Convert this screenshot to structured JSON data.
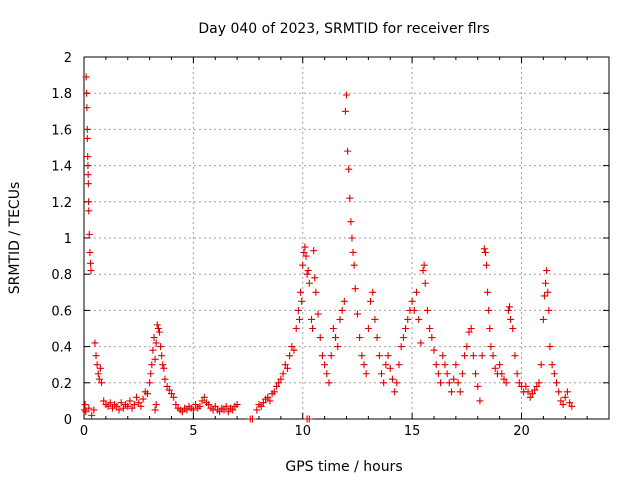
{
  "chart_data": {
    "type": "scatter",
    "title": "Day 040 of 2023, SRMTID for receiver flrs",
    "xlabel": "GPS time / hours",
    "ylabel": "SRMTID / TECUs",
    "xlim": [
      0,
      24
    ],
    "ylim": [
      0,
      2
    ],
    "x_ticks": [
      0,
      5,
      10,
      15,
      20
    ],
    "x_tick_labels": [
      "0",
      "5",
      "10",
      "15",
      "20"
    ],
    "y_ticks": [
      0,
      0.2,
      0.4,
      0.6,
      0.8,
      1,
      1.2,
      1.4,
      1.6,
      1.8,
      2
    ],
    "y_tick_labels": [
      "0",
      "0.2",
      "0.4",
      "0.6",
      "0.8",
      "1",
      "1.2",
      "1.4",
      "1.6",
      "1.8",
      "2"
    ],
    "grid": true,
    "marker": "+",
    "colors": {
      "marker": "#e00000",
      "grid": "#a0a0a0",
      "axis": "#000000"
    },
    "series": [
      {
        "name": "SRMTID",
        "points": [
          [
            0.02,
            0.05
          ],
          [
            0.05,
            0.08
          ],
          [
            0.08,
            0.04
          ],
          [
            0.1,
            1.89
          ],
          [
            0.12,
            1.8
          ],
          [
            0.13,
            1.72
          ],
          [
            0.15,
            1.6
          ],
          [
            0.15,
            1.55
          ],
          [
            0.17,
            1.45
          ],
          [
            0.18,
            1.4
          ],
          [
            0.19,
            1.35
          ],
          [
            0.2,
            1.3
          ],
          [
            0.21,
            1.2
          ],
          [
            0.22,
            1.15
          ],
          [
            0.24,
            1.02
          ],
          [
            0.27,
            0.92
          ],
          [
            0.3,
            0.86
          ],
          [
            0.32,
            0.82
          ],
          [
            0.22,
            0.06
          ],
          [
            0.35,
            0.02
          ],
          [
            0.45,
            0.05
          ],
          [
            0.5,
            0.42
          ],
          [
            0.55,
            0.35
          ],
          [
            0.6,
            0.3
          ],
          [
            0.65,
            0.25
          ],
          [
            0.7,
            0.22
          ],
          [
            0.75,
            0.28
          ],
          [
            0.8,
            0.2
          ],
          [
            0.9,
            0.1
          ],
          [
            1.0,
            0.08
          ],
          [
            1.1,
            0.07
          ],
          [
            1.2,
            0.09
          ],
          [
            1.3,
            0.06
          ],
          [
            1.4,
            0.08
          ],
          [
            1.5,
            0.07
          ],
          [
            1.6,
            0.05
          ],
          [
            1.7,
            0.09
          ],
          [
            1.8,
            0.06
          ],
          [
            1.9,
            0.08
          ],
          [
            2.0,
            0.07
          ],
          [
            2.1,
            0.1
          ],
          [
            2.2,
            0.06
          ],
          [
            2.3,
            0.08
          ],
          [
            2.4,
            0.12
          ],
          [
            2.5,
            0.09
          ],
          [
            2.6,
            0.07
          ],
          [
            2.7,
            0.11
          ],
          [
            2.8,
            0.15
          ],
          [
            2.9,
            0.14
          ],
          [
            3.0,
            0.2
          ],
          [
            3.05,
            0.25
          ],
          [
            3.1,
            0.3
          ],
          [
            3.15,
            0.38
          ],
          [
            3.2,
            0.45
          ],
          [
            3.25,
            0.33
          ],
          [
            3.3,
            0.42
          ],
          [
            3.35,
            0.52
          ],
          [
            3.4,
            0.5
          ],
          [
            3.45,
            0.48
          ],
          [
            3.5,
            0.4
          ],
          [
            3.55,
            0.35
          ],
          [
            3.6,
            0.3
          ],
          [
            3.65,
            0.28
          ],
          [
            3.7,
            0.22
          ],
          [
            3.3,
            0.08
          ],
          [
            3.25,
            0.05
          ],
          [
            3.8,
            0.18
          ],
          [
            3.9,
            0.16
          ],
          [
            4.0,
            0.14
          ],
          [
            4.1,
            0.12
          ],
          [
            4.2,
            0.08
          ],
          [
            4.3,
            0.06
          ],
          [
            4.4,
            0.05
          ],
          [
            4.5,
            0.04
          ],
          [
            4.6,
            0.06
          ],
          [
            4.7,
            0.05
          ],
          [
            4.8,
            0.07
          ],
          [
            4.9,
            0.06
          ],
          [
            5.0,
            0.05
          ],
          [
            5.1,
            0.08
          ],
          [
            5.2,
            0.06
          ],
          [
            5.3,
            0.07
          ],
          [
            5.4,
            0.1
          ],
          [
            5.5,
            0.12
          ],
          [
            5.6,
            0.09
          ],
          [
            5.7,
            0.08
          ],
          [
            5.8,
            0.06
          ],
          [
            5.9,
            0.05
          ],
          [
            6.0,
            0.07
          ],
          [
            6.1,
            0.05
          ],
          [
            6.2,
            0.04
          ],
          [
            6.3,
            0.06
          ],
          [
            6.4,
            0.05
          ],
          [
            6.5,
            0.07
          ],
          [
            6.6,
            0.04
          ],
          [
            6.7,
            0.06
          ],
          [
            6.8,
            0.05
          ],
          [
            6.9,
            0.07
          ],
          [
            7.0,
            0.08
          ],
          [
            7.6,
            0.0
          ],
          [
            7.7,
            0.0
          ],
          [
            7.9,
            0.05
          ],
          [
            8.0,
            0.08
          ],
          [
            8.1,
            0.07
          ],
          [
            8.2,
            0.09
          ],
          [
            8.3,
            0.11
          ],
          [
            8.4,
            0.12
          ],
          [
            8.5,
            0.1
          ],
          [
            8.6,
            0.14
          ],
          [
            8.7,
            0.15
          ],
          [
            8.8,
            0.18
          ],
          [
            8.9,
            0.2
          ],
          [
            9.0,
            0.22
          ],
          [
            9.1,
            0.25
          ],
          [
            9.2,
            0.3
          ],
          [
            9.3,
            0.28
          ],
          [
            9.4,
            0.35
          ],
          [
            9.5,
            0.4
          ],
          [
            9.6,
            0.38
          ],
          [
            9.7,
            0.5
          ],
          [
            9.8,
            0.6
          ],
          [
            9.85,
            0.55
          ],
          [
            9.9,
            0.7
          ],
          [
            9.95,
            0.65
          ],
          [
            10.0,
            0.85
          ],
          [
            10.05,
            0.92
          ],
          [
            10.1,
            0.95
          ],
          [
            10.15,
            0.9
          ],
          [
            10.2,
            0.8
          ],
          [
            10.25,
            0.82
          ],
          [
            10.3,
            0.75
          ],
          [
            10.4,
            0.55
          ],
          [
            10.45,
            0.5
          ],
          [
            10.2,
            0.0
          ],
          [
            10.3,
            0.0
          ],
          [
            10.5,
            0.93
          ],
          [
            10.55,
            0.78
          ],
          [
            10.6,
            0.7
          ],
          [
            10.7,
            0.58
          ],
          [
            10.8,
            0.45
          ],
          [
            10.9,
            0.35
          ],
          [
            11.0,
            0.3
          ],
          [
            11.1,
            0.25
          ],
          [
            11.2,
            0.2
          ],
          [
            11.3,
            0.35
          ],
          [
            11.4,
            0.5
          ],
          [
            11.5,
            0.45
          ],
          [
            11.6,
            0.4
          ],
          [
            11.7,
            0.55
          ],
          [
            11.8,
            0.6
          ],
          [
            11.9,
            0.65
          ],
          [
            11.95,
            1.7
          ],
          [
            12.0,
            1.79
          ],
          [
            12.05,
            1.48
          ],
          [
            12.1,
            1.38
          ],
          [
            12.15,
            1.22
          ],
          [
            12.2,
            1.09
          ],
          [
            12.25,
            1.0
          ],
          [
            12.3,
            0.92
          ],
          [
            12.35,
            0.85
          ],
          [
            12.4,
            0.72
          ],
          [
            12.5,
            0.58
          ],
          [
            12.6,
            0.45
          ],
          [
            12.7,
            0.35
          ],
          [
            12.8,
            0.3
          ],
          [
            12.9,
            0.25
          ],
          [
            13.0,
            0.5
          ],
          [
            13.1,
            0.65
          ],
          [
            13.2,
            0.7
          ],
          [
            13.3,
            0.55
          ],
          [
            13.4,
            0.45
          ],
          [
            13.5,
            0.35
          ],
          [
            13.6,
            0.25
          ],
          [
            13.7,
            0.2
          ],
          [
            13.8,
            0.3
          ],
          [
            13.9,
            0.35
          ],
          [
            14.0,
            0.28
          ],
          [
            14.1,
            0.22
          ],
          [
            14.2,
            0.15
          ],
          [
            14.3,
            0.2
          ],
          [
            14.4,
            0.3
          ],
          [
            14.5,
            0.4
          ],
          [
            14.6,
            0.45
          ],
          [
            14.7,
            0.5
          ],
          [
            14.8,
            0.55
          ],
          [
            14.9,
            0.6
          ],
          [
            15.0,
            0.65
          ],
          [
            15.1,
            0.6
          ],
          [
            15.2,
            0.7
          ],
          [
            15.3,
            0.55
          ],
          [
            15.4,
            0.42
          ],
          [
            15.5,
            0.82
          ],
          [
            15.55,
            0.85
          ],
          [
            15.6,
            0.75
          ],
          [
            15.7,
            0.6
          ],
          [
            15.8,
            0.5
          ],
          [
            15.9,
            0.45
          ],
          [
            16.0,
            0.38
          ],
          [
            16.1,
            0.3
          ],
          [
            16.2,
            0.25
          ],
          [
            16.3,
            0.2
          ],
          [
            16.4,
            0.35
          ],
          [
            16.5,
            0.3
          ],
          [
            16.6,
            0.25
          ],
          [
            16.7,
            0.2
          ],
          [
            16.8,
            0.15
          ],
          [
            16.9,
            0.22
          ],
          [
            17.0,
            0.3
          ],
          [
            17.1,
            0.2
          ],
          [
            17.2,
            0.15
          ],
          [
            17.3,
            0.25
          ],
          [
            17.4,
            0.35
          ],
          [
            17.5,
            0.4
          ],
          [
            17.6,
            0.48
          ],
          [
            17.7,
            0.5
          ],
          [
            17.8,
            0.35
          ],
          [
            17.9,
            0.25
          ],
          [
            18.0,
            0.18
          ],
          [
            18.1,
            0.1
          ],
          [
            18.2,
            0.35
          ],
          [
            18.3,
            0.94
          ],
          [
            18.35,
            0.92
          ],
          [
            18.4,
            0.85
          ],
          [
            18.45,
            0.7
          ],
          [
            18.5,
            0.6
          ],
          [
            18.55,
            0.5
          ],
          [
            18.6,
            0.4
          ],
          [
            18.7,
            0.35
          ],
          [
            18.8,
            0.28
          ],
          [
            18.9,
            0.25
          ],
          [
            19.0,
            0.3
          ],
          [
            19.1,
            0.25
          ],
          [
            19.2,
            0.22
          ],
          [
            19.3,
            0.2
          ],
          [
            19.4,
            0.6
          ],
          [
            19.45,
            0.62
          ],
          [
            19.5,
            0.55
          ],
          [
            19.6,
            0.5
          ],
          [
            19.7,
            0.35
          ],
          [
            19.8,
            0.25
          ],
          [
            19.9,
            0.2
          ],
          [
            20.0,
            0.18
          ],
          [
            20.1,
            0.15
          ],
          [
            20.2,
            0.18
          ],
          [
            20.3,
            0.15
          ],
          [
            20.4,
            0.12
          ],
          [
            20.5,
            0.14
          ],
          [
            20.6,
            0.16
          ],
          [
            20.7,
            0.18
          ],
          [
            20.8,
            0.2
          ],
          [
            20.9,
            0.3
          ],
          [
            21.0,
            0.55
          ],
          [
            21.05,
            0.68
          ],
          [
            21.1,
            0.75
          ],
          [
            21.15,
            0.82
          ],
          [
            21.2,
            0.7
          ],
          [
            21.25,
            0.6
          ],
          [
            21.3,
            0.4
          ],
          [
            21.4,
            0.3
          ],
          [
            21.5,
            0.25
          ],
          [
            21.6,
            0.2
          ],
          [
            21.7,
            0.15
          ],
          [
            21.8,
            0.1
          ],
          [
            21.9,
            0.08
          ],
          [
            22.0,
            0.12
          ],
          [
            22.1,
            0.15
          ],
          [
            22.2,
            0.09
          ],
          [
            22.3,
            0.07
          ]
        ]
      }
    ]
  }
}
